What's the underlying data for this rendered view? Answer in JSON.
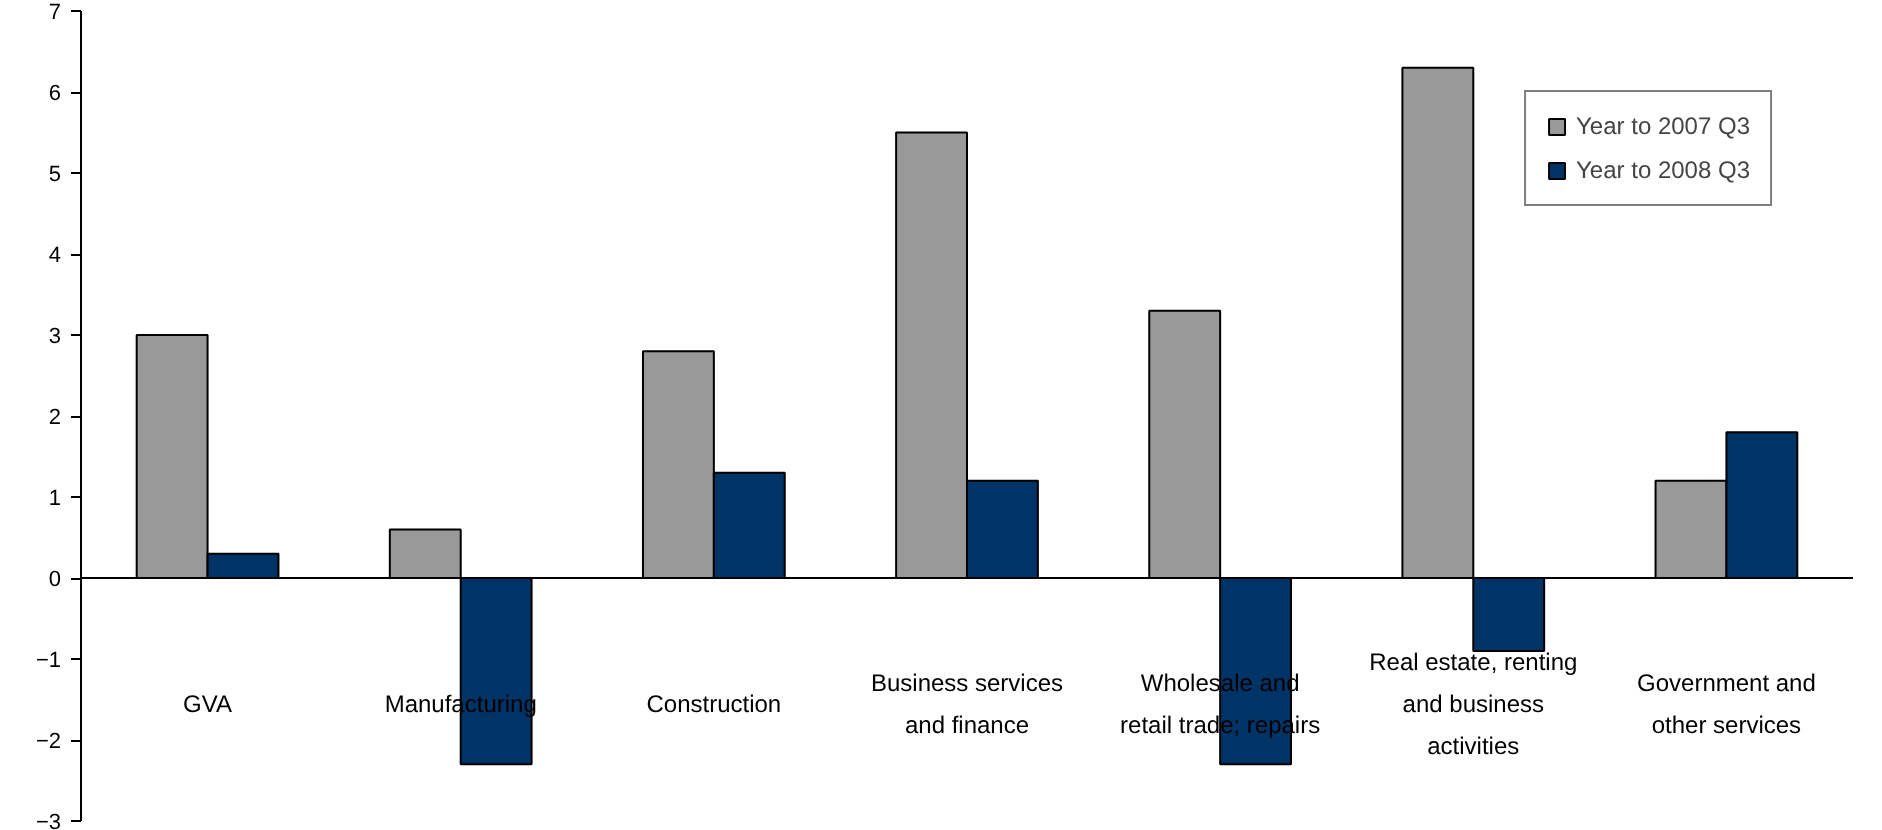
{
  "chart_data": {
    "type": "bar",
    "categories": [
      "GVA",
      "Manufacturing",
      "Construction",
      "Business services\nand finance",
      "Wholesale and\nretail trade; repairs",
      "Real estate, renting\nand business\nactivities",
      "Government and\nother services"
    ],
    "series": [
      {
        "name": "Year to 2007 Q3",
        "color": "#999999",
        "values": [
          3.0,
          0.6,
          2.8,
          5.5,
          3.3,
          6.3,
          1.2
        ]
      },
      {
        "name": "Year to 2008 Q3",
        "color": "#003366",
        "values": [
          0.3,
          -2.3,
          1.3,
          1.2,
          -2.3,
          -0.9,
          1.8
        ]
      }
    ],
    "ylim": [
      -3,
      7
    ],
    "yticks": [
      -3,
      -2,
      -1,
      0,
      1,
      2,
      3,
      4,
      5,
      6,
      7
    ],
    "legend": "top right"
  }
}
